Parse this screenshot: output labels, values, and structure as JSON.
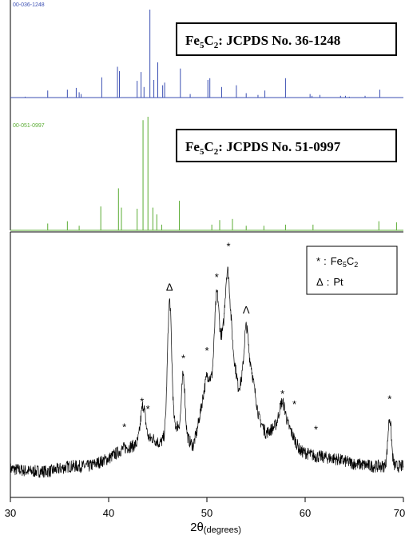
{
  "chart_data": [
    {
      "type": "bar",
      "panel": "reference-1",
      "ref_code": "00-036-1248",
      "box_label": {
        "compound": "Fe",
        "sub1": "5",
        "mid": "C",
        "sub2": "2",
        "rest": ": JCPDS No. 36-1248"
      },
      "color": "#3b4fb3",
      "ylim": [
        0,
        100
      ],
      "peaks": [
        {
          "x": 31.5,
          "y": 1
        },
        {
          "x": 33.8,
          "y": 8
        },
        {
          "x": 35.8,
          "y": 9
        },
        {
          "x": 36.7,
          "y": 11
        },
        {
          "x": 37.0,
          "y": 6
        },
        {
          "x": 37.2,
          "y": 4
        },
        {
          "x": 39.3,
          "y": 23
        },
        {
          "x": 40.9,
          "y": 35
        },
        {
          "x": 41.1,
          "y": 30
        },
        {
          "x": 42.9,
          "y": 19
        },
        {
          "x": 43.3,
          "y": 29
        },
        {
          "x": 43.6,
          "y": 12
        },
        {
          "x": 44.2,
          "y": 100
        },
        {
          "x": 44.6,
          "y": 20
        },
        {
          "x": 45.0,
          "y": 40
        },
        {
          "x": 45.5,
          "y": 14
        },
        {
          "x": 45.7,
          "y": 17
        },
        {
          "x": 47.3,
          "y": 33
        },
        {
          "x": 48.3,
          "y": 4
        },
        {
          "x": 50.1,
          "y": 20
        },
        {
          "x": 50.3,
          "y": 22
        },
        {
          "x": 51.5,
          "y": 12
        },
        {
          "x": 53.0,
          "y": 14
        },
        {
          "x": 54.0,
          "y": 5
        },
        {
          "x": 55.2,
          "y": 3
        },
        {
          "x": 55.9,
          "y": 8
        },
        {
          "x": 58.0,
          "y": 22
        },
        {
          "x": 60.5,
          "y": 4
        },
        {
          "x": 60.7,
          "y": 2
        },
        {
          "x": 61.5,
          "y": 3
        },
        {
          "x": 63.6,
          "y": 2
        },
        {
          "x": 64.1,
          "y": 2
        },
        {
          "x": 64.5,
          "y": 1
        },
        {
          "x": 66.1,
          "y": 2
        },
        {
          "x": 67.6,
          "y": 9
        }
      ]
    },
    {
      "type": "bar",
      "panel": "reference-2",
      "ref_code": "00-051-0997",
      "box_label": {
        "compound": "Fe",
        "sub1": "5",
        "mid": "C",
        "sub2": "2",
        "rest": ": JCPDS No. 51-0997"
      },
      "color": "#5aac33",
      "ylim": [
        0,
        100
      ],
      "peaks": [
        {
          "x": 33.8,
          "y": 6
        },
        {
          "x": 35.8,
          "y": 8
        },
        {
          "x": 37.0,
          "y": 4
        },
        {
          "x": 39.2,
          "y": 21
        },
        {
          "x": 41.0,
          "y": 37
        },
        {
          "x": 41.3,
          "y": 20
        },
        {
          "x": 42.9,
          "y": 19
        },
        {
          "x": 43.5,
          "y": 97
        },
        {
          "x": 44.0,
          "y": 100
        },
        {
          "x": 44.5,
          "y": 20
        },
        {
          "x": 44.9,
          "y": 14
        },
        {
          "x": 45.4,
          "y": 5
        },
        {
          "x": 47.2,
          "y": 26
        },
        {
          "x": 50.5,
          "y": 5
        },
        {
          "x": 51.3,
          "y": 9
        },
        {
          "x": 52.6,
          "y": 10
        },
        {
          "x": 54.0,
          "y": 4
        },
        {
          "x": 55.8,
          "y": 4
        },
        {
          "x": 58.0,
          "y": 5
        },
        {
          "x": 60.8,
          "y": 5
        },
        {
          "x": 67.5,
          "y": 8
        },
        {
          "x": 69.3,
          "y": 7
        }
      ]
    },
    {
      "type": "line",
      "panel": "measured-pattern",
      "xlim": [
        30,
        70
      ],
      "ylim": [
        0,
        100
      ],
      "x_ticks": [
        "30",
        "40",
        "50",
        "60",
        "70"
      ],
      "xlabel_main": "2θ",
      "xlabel_sub": "(degrees)",
      "baseline": [
        {
          "x": 30,
          "y": 10
        },
        {
          "x": 32,
          "y": 9
        },
        {
          "x": 34,
          "y": 9
        },
        {
          "x": 36,
          "y": 11
        },
        {
          "x": 38,
          "y": 11
        },
        {
          "x": 40,
          "y": 14
        },
        {
          "x": 41.5,
          "y": 18
        },
        {
          "x": 42.5,
          "y": 19
        },
        {
          "x": 44.5,
          "y": 22
        },
        {
          "x": 45.2,
          "y": 20
        },
        {
          "x": 47.0,
          "y": 27
        },
        {
          "x": 48.6,
          "y": 19
        },
        {
          "x": 49.0,
          "y": 25
        },
        {
          "x": 50.0,
          "y": 47
        },
        {
          "x": 50.5,
          "y": 45
        },
        {
          "x": 51.0,
          "y": 52
        },
        {
          "x": 51.5,
          "y": 60
        },
        {
          "x": 52.5,
          "y": 60
        },
        {
          "x": 53.2,
          "y": 42
        },
        {
          "x": 54.5,
          "y": 50
        },
        {
          "x": 55.3,
          "y": 30
        },
        {
          "x": 56.0,
          "y": 24
        },
        {
          "x": 57.5,
          "y": 28
        },
        {
          "x": 58.5,
          "y": 25
        },
        {
          "x": 59.5,
          "y": 17
        },
        {
          "x": 61,
          "y": 15
        },
        {
          "x": 63,
          "y": 14
        },
        {
          "x": 65,
          "y": 12
        },
        {
          "x": 67,
          "y": 11
        },
        {
          "x": 70,
          "y": 11
        }
      ],
      "peaks": [
        {
          "x": 43.5,
          "y": 35,
          "w": 0.35
        },
        {
          "x": 46.2,
          "y": 76,
          "w": 0.3
        },
        {
          "x": 47.6,
          "y": 47,
          "w": 0.25
        },
        {
          "x": 51.0,
          "y": 79,
          "w": 0.3
        },
        {
          "x": 52.1,
          "y": 88,
          "w": 0.35
        },
        {
          "x": 54.0,
          "y": 66,
          "w": 0.3
        },
        {
          "x": 57.7,
          "y": 36,
          "w": 0.45
        },
        {
          "x": 68.6,
          "y": 30,
          "w": 0.25
        }
      ],
      "markers": [
        {
          "symbol": "*",
          "x": 41.6,
          "y": 25
        },
        {
          "symbol": "*",
          "x": 43.4,
          "y": 35
        },
        {
          "symbol": "*",
          "x": 44.0,
          "y": 32
        },
        {
          "symbol": "Δ",
          "x": 46.2,
          "y": 80
        },
        {
          "symbol": "*",
          "x": 47.6,
          "y": 52
        },
        {
          "symbol": "*",
          "x": 50.0,
          "y": 55
        },
        {
          "symbol": "*",
          "x": 51.0,
          "y": 84
        },
        {
          "symbol": "*",
          "x": 52.2,
          "y": 96
        },
        {
          "symbol": "Λ",
          "x": 54.0,
          "y": 71
        },
        {
          "symbol": "*",
          "x": 57.7,
          "y": 38
        },
        {
          "symbol": "*",
          "x": 58.9,
          "y": 34
        },
        {
          "symbol": "*",
          "x": 61.1,
          "y": 24
        },
        {
          "symbol": "*",
          "x": 68.6,
          "y": 36
        }
      ],
      "legend": {
        "placement": "top-right",
        "entries": [
          {
            "symbol": "*",
            "sep": ":",
            "text": "Fe",
            "sub1": "5",
            "text2": "C",
            "sub2": "2"
          },
          {
            "symbol": "Δ",
            "sep": ":",
            "text": "Pt",
            "sub1": "",
            "text2": "",
            "sub2": ""
          }
        ]
      }
    }
  ]
}
